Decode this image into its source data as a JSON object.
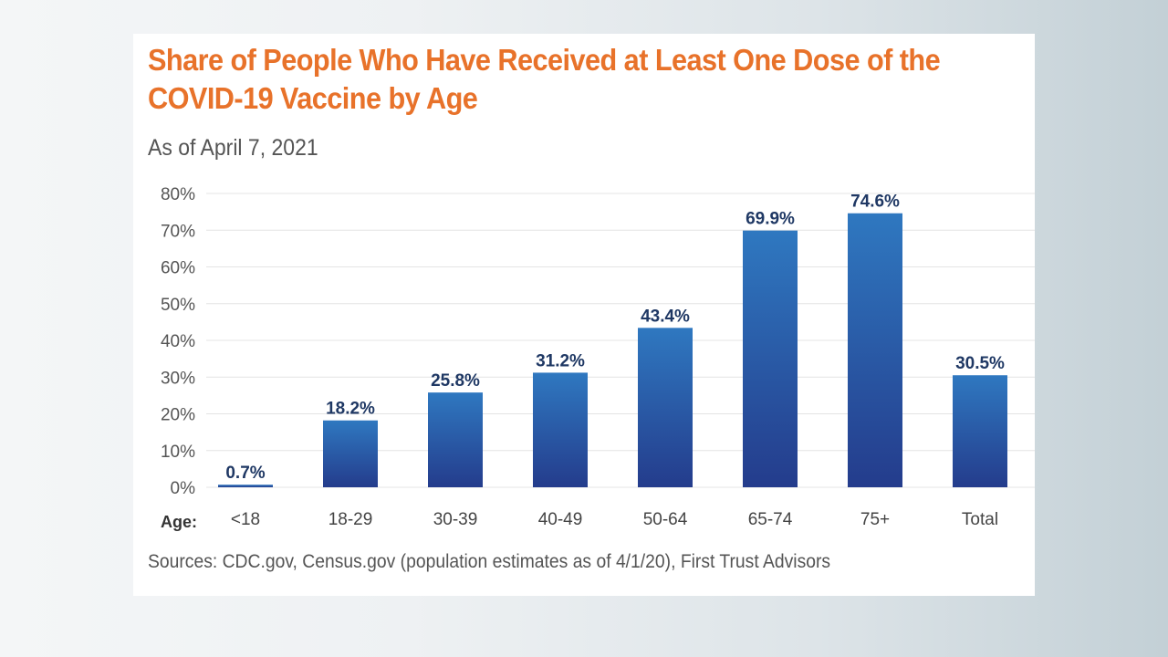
{
  "chart_data": {
    "type": "bar",
    "title": "Share of People Who Have Received at Least One Dose of the COVID-19 Vaccine by Age",
    "subtitle": "As of April 7, 2021",
    "xlabel": "Age:",
    "ylabel": "",
    "categories": [
      "<18",
      "18-29",
      "30-39",
      "40-49",
      "50-64",
      "65-74",
      "75+",
      "Total"
    ],
    "values": [
      0.7,
      18.2,
      25.8,
      31.2,
      43.4,
      69.9,
      74.6,
      30.5
    ],
    "data_labels": [
      "0.7%",
      "18.2%",
      "25.8%",
      "31.2%",
      "43.4%",
      "69.9%",
      "74.6%",
      "30.5%"
    ],
    "ylim": [
      0,
      80
    ],
    "yticks": [
      0,
      10,
      20,
      30,
      40,
      50,
      60,
      70,
      80
    ],
    "ytick_labels": [
      "0%",
      "10%",
      "20%",
      "30%",
      "40%",
      "50%",
      "60%",
      "70%",
      "80%"
    ],
    "grid": true,
    "legend": "none",
    "source": "Sources: CDC.gov, Census.gov (population estimates as of 4/1/20), First Trust Advisors",
    "colors": {
      "title": "#e8722a",
      "bar_top": "#2f78c0",
      "bar_bottom": "#243c8c",
      "data_label": "#1f3864",
      "grid": "#e4e4e4"
    }
  }
}
